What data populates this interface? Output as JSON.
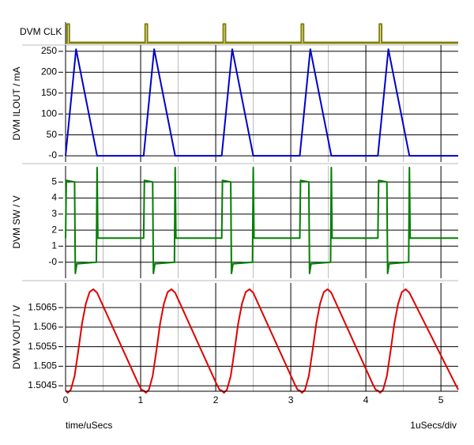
{
  "chart_data": [
    {
      "type": "line",
      "ylabel": "DVM CLK",
      "color": "#808000",
      "xlim": [
        0,
        5.23
      ],
      "ylim": [
        -0.1,
        1.1
      ],
      "x": [
        0,
        0.02,
        0.02,
        0.05,
        0.05,
        1.06,
        1.06,
        1.09,
        1.09,
        2.1,
        2.1,
        2.13,
        2.13,
        3.14,
        3.14,
        3.17,
        3.17,
        4.18,
        4.18,
        4.21,
        4.21,
        5.23
      ],
      "values": [
        0,
        0,
        1,
        1,
        0,
        0,
        1,
        1,
        0,
        0,
        1,
        1,
        0,
        0,
        1,
        1,
        0,
        0,
        1,
        1,
        0,
        0
      ]
    },
    {
      "type": "line",
      "ylabel": "DVM ILOUT / mA",
      "color": "#0000cc",
      "xlim": [
        0,
        5.23
      ],
      "ylim": [
        -15,
        265
      ],
      "yticks": [
        {
          "value": 0,
          "label": "-0"
        },
        50,
        100,
        150,
        200,
        250
      ],
      "xticks": [
        0,
        1,
        2,
        3,
        4,
        5
      ],
      "xminor": [
        0.5,
        1.5,
        2.5,
        3.5,
        4.5
      ],
      "grid": true,
      "x": [
        0,
        0.14,
        0.42,
        1.04,
        1.18,
        1.46,
        2.08,
        2.22,
        2.5,
        3.12,
        3.26,
        3.54,
        4.16,
        4.3,
        4.58,
        5.23
      ],
      "values": [
        0,
        255,
        0,
        0,
        255,
        0,
        0,
        255,
        0,
        0,
        255,
        0,
        0,
        255,
        0,
        0
      ]
    },
    {
      "type": "line",
      "ylabel": "DVM SW / V",
      "color": "#008000",
      "xlim": [
        0,
        5.23
      ],
      "ylim": [
        -1,
        6
      ],
      "yticks": [
        {
          "value": 0,
          "label": "-0"
        },
        1,
        2,
        3,
        4,
        5
      ],
      "xticks": [
        0,
        1,
        2,
        3,
        4,
        5
      ],
      "xminor": [
        0.5,
        1.5,
        2.5,
        3.5,
        4.5
      ],
      "grid": true,
      "x": [
        0,
        0.01,
        0.12,
        0.13,
        0.15,
        0.41,
        0.42,
        0.43,
        1.04,
        1.05,
        1.16,
        1.17,
        1.19,
        1.45,
        1.46,
        1.47,
        2.08,
        2.09,
        2.2,
        2.21,
        2.23,
        2.49,
        2.5,
        2.51,
        3.12,
        3.13,
        3.24,
        3.25,
        3.27,
        3.53,
        3.54,
        3.55,
        4.16,
        4.17,
        4.28,
        4.29,
        4.31,
        4.57,
        4.58,
        4.59,
        5.23
      ],
      "values": [
        1.5,
        5.1,
        5.0,
        -0.7,
        -0.1,
        0,
        5.9,
        1.5,
        1.5,
        5.1,
        5.0,
        -0.7,
        -0.1,
        0,
        5.9,
        1.5,
        1.5,
        5.1,
        5.0,
        -0.7,
        -0.1,
        0,
        5.9,
        1.5,
        1.5,
        5.1,
        5.0,
        -0.7,
        -0.1,
        0,
        5.9,
        1.5,
        1.5,
        5.1,
        5.0,
        -0.7,
        -0.1,
        0,
        5.9,
        1.5,
        1.5
      ]
    },
    {
      "type": "line",
      "ylabel": "DVM VOUT / V",
      "color": "#e00000",
      "xlim": [
        0,
        5.23
      ],
      "ylim": [
        1.50436,
        1.50713
      ],
      "yticks": [
        1.5045,
        1.505,
        1.5055,
        1.506,
        1.5065
      ],
      "xticks": [
        0,
        1,
        2,
        3,
        4,
        5
      ],
      "xminor": [
        0.5,
        1.5,
        2.5,
        3.5,
        4.5
      ],
      "grid": true,
      "xlabel": "time/uSecs",
      "x_scale_label": "1uSecs/div",
      "x": [
        0,
        0.03,
        0.07,
        0.12,
        0.17,
        0.22,
        0.27,
        0.32,
        0.37,
        0.42,
        0.97,
        1.01,
        1.04,
        1.07,
        1.11,
        1.16,
        1.21,
        1.26,
        1.31,
        1.36,
        1.41,
        1.46,
        2.01,
        2.05,
        2.08,
        2.11,
        2.15,
        2.2,
        2.25,
        2.3,
        2.35,
        2.4,
        2.45,
        2.5,
        3.05,
        3.09,
        3.12,
        3.15,
        3.19,
        3.24,
        3.29,
        3.34,
        3.39,
        3.44,
        3.49,
        3.54,
        4.09,
        4.13,
        4.16,
        4.19,
        4.23,
        4.28,
        4.33,
        4.38,
        4.43,
        4.48,
        4.53,
        4.58,
        5.23
      ],
      "values": [
        1.50438,
        1.50432,
        1.5044,
        1.50475,
        1.5054,
        1.5061,
        1.5066,
        1.5069,
        1.50697,
        1.50688,
        1.50455,
        1.5044,
        1.50438,
        1.50432,
        1.5044,
        1.50475,
        1.5054,
        1.5061,
        1.5066,
        1.5069,
        1.50697,
        1.50688,
        1.50455,
        1.5044,
        1.50438,
        1.50432,
        1.5044,
        1.50475,
        1.5054,
        1.5061,
        1.5066,
        1.5069,
        1.50697,
        1.50688,
        1.50455,
        1.5044,
        1.50438,
        1.50432,
        1.5044,
        1.50475,
        1.5054,
        1.5061,
        1.5066,
        1.5069,
        1.50697,
        1.50688,
        1.50455,
        1.5044,
        1.50438,
        1.50432,
        1.5044,
        1.50475,
        1.5054,
        1.5061,
        1.5066,
        1.5069,
        1.50697,
        1.50688,
        1.5044
      ]
    }
  ]
}
